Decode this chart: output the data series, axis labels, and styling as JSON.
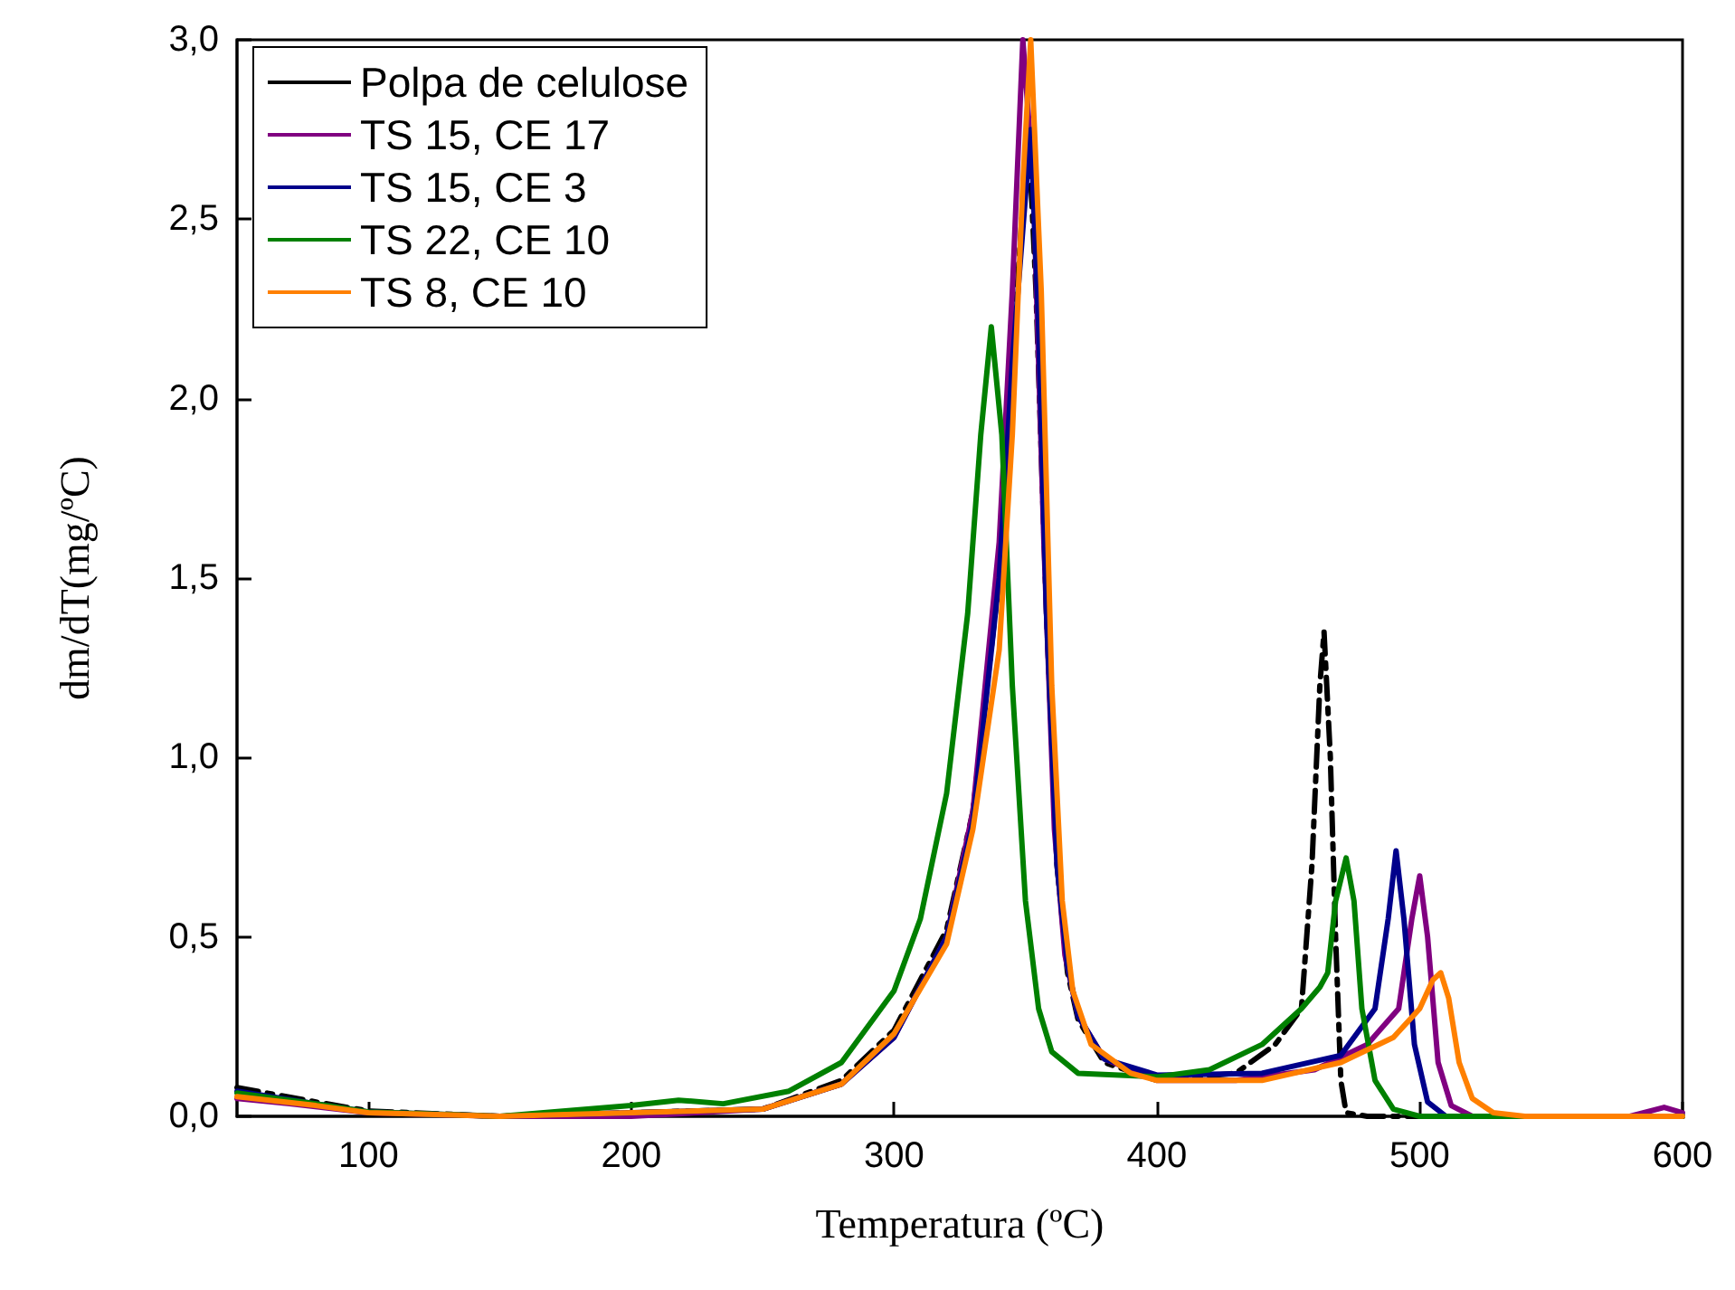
{
  "chart_data": {
    "type": "line",
    "xlabel": "Temperatura (ºC)",
    "ylabel": "dm/dT(mg/ºC)",
    "xlim": [
      50,
      600
    ],
    "xticks": [
      100,
      200,
      300,
      400,
      500,
      600
    ],
    "ylim": [
      0,
      3
    ],
    "yticks": [
      {
        "value": 0,
        "label": "0,0"
      },
      {
        "value": 0.5,
        "label": "0,5"
      },
      {
        "value": 1,
        "label": "1,0"
      },
      {
        "value": 1.5,
        "label": "1,5"
      },
      {
        "value": 2,
        "label": "2,0"
      },
      {
        "value": 2.5,
        "label": "2,5"
      },
      {
        "value": 3,
        "label": "3,0"
      }
    ],
    "grid": false,
    "legend": "top left",
    "marker": "none",
    "series": [
      {
        "name": "Polpa de celulose",
        "color": "#000000",
        "line_style": "dashed",
        "x": [
          50,
          80,
          100,
          150,
          250,
          280,
          300,
          320,
          330,
          340,
          345,
          351,
          354,
          358,
          362,
          366,
          370,
          380,
          400,
          430,
          445,
          455,
          459,
          462,
          463.6,
          466,
          468,
          470,
          472,
          480,
          600
        ],
        "values": [
          0.08,
          0.04,
          0.015,
          0,
          0.02,
          0.1,
          0.24,
          0.52,
          0.85,
          1.5,
          2.1,
          2.77,
          2.3,
          1.4,
          0.7,
          0.4,
          0.27,
          0.15,
          0.1,
          0.12,
          0.2,
          0.3,
          0.7,
          1.2,
          1.35,
          1.0,
          0.5,
          0.1,
          0.01,
          0,
          0
        ]
      },
      {
        "name": "TS 15, CE 17",
        "color": "#800080",
        "x": [
          50,
          70,
          100,
          150,
          200,
          250,
          280,
          300,
          320,
          330,
          340,
          345,
          349,
          353,
          357,
          361,
          365,
          370,
          380,
          400,
          430,
          460,
          480,
          492,
          497,
          500,
          503,
          507,
          512,
          520,
          580,
          593,
          600
        ],
        "values": [
          0.05,
          0.035,
          0.01,
          0,
          0,
          0.02,
          0.09,
          0.22,
          0.5,
          0.85,
          1.6,
          2.3,
          3.0,
          2.6,
          1.6,
          0.8,
          0.45,
          0.28,
          0.16,
          0.1,
          0.1,
          0.13,
          0.2,
          0.3,
          0.55,
          0.67,
          0.5,
          0.15,
          0.03,
          0,
          0,
          0.025,
          0.01
        ]
      },
      {
        "name": "TS 15, CE 3",
        "color": "#00008b",
        "x": [
          50,
          80,
          100,
          150,
          250,
          280,
          300,
          320,
          330,
          340,
          345,
          352,
          355,
          358,
          362,
          366,
          370,
          380,
          400,
          440,
          470,
          483,
          488,
          491,
          494,
          498,
          503,
          510,
          600
        ],
        "values": [
          0.07,
          0.035,
          0.012,
          0,
          0.02,
          0.09,
          0.22,
          0.5,
          0.82,
          1.5,
          2.1,
          2.75,
          2.2,
          1.4,
          0.7,
          0.42,
          0.28,
          0.16,
          0.115,
          0.12,
          0.17,
          0.3,
          0.55,
          0.74,
          0.55,
          0.2,
          0.04,
          0,
          0
        ]
      },
      {
        "name": "TS 22, CE 10",
        "color": "#008000",
        "x": [
          50,
          80,
          100,
          150,
          200,
          218,
          235,
          260,
          280,
          300,
          310,
          320,
          328,
          333,
          337,
          341,
          345,
          350,
          355,
          360,
          370,
          400,
          420,
          440,
          455,
          462,
          465,
          468,
          472,
          475,
          478,
          483,
          490,
          500,
          600
        ],
        "values": [
          0.065,
          0.035,
          0.012,
          0,
          0.03,
          0.045,
          0.035,
          0.07,
          0.15,
          0.35,
          0.55,
          0.9,
          1.4,
          1.9,
          2.2,
          1.9,
          1.2,
          0.6,
          0.3,
          0.18,
          0.12,
          0.11,
          0.13,
          0.2,
          0.3,
          0.36,
          0.4,
          0.6,
          0.72,
          0.6,
          0.3,
          0.1,
          0.02,
          0,
          0
        ]
      },
      {
        "name": "TS 8, CE 10",
        "color": "#ff8000",
        "x": [
          50,
          80,
          100,
          150,
          250,
          280,
          300,
          320,
          330,
          340,
          345,
          349,
          352,
          356,
          360,
          364,
          368,
          375,
          390,
          400,
          440,
          470,
          490,
          500,
          505,
          508,
          511,
          515,
          520,
          528,
          540,
          600
        ],
        "values": [
          0.055,
          0.03,
          0.01,
          0,
          0.02,
          0.09,
          0.23,
          0.48,
          0.8,
          1.3,
          1.9,
          2.6,
          3.0,
          2.3,
          1.2,
          0.6,
          0.35,
          0.2,
          0.12,
          0.1,
          0.1,
          0.15,
          0.22,
          0.3,
          0.38,
          0.4,
          0.33,
          0.15,
          0.05,
          0.01,
          0,
          0
        ]
      }
    ]
  }
}
